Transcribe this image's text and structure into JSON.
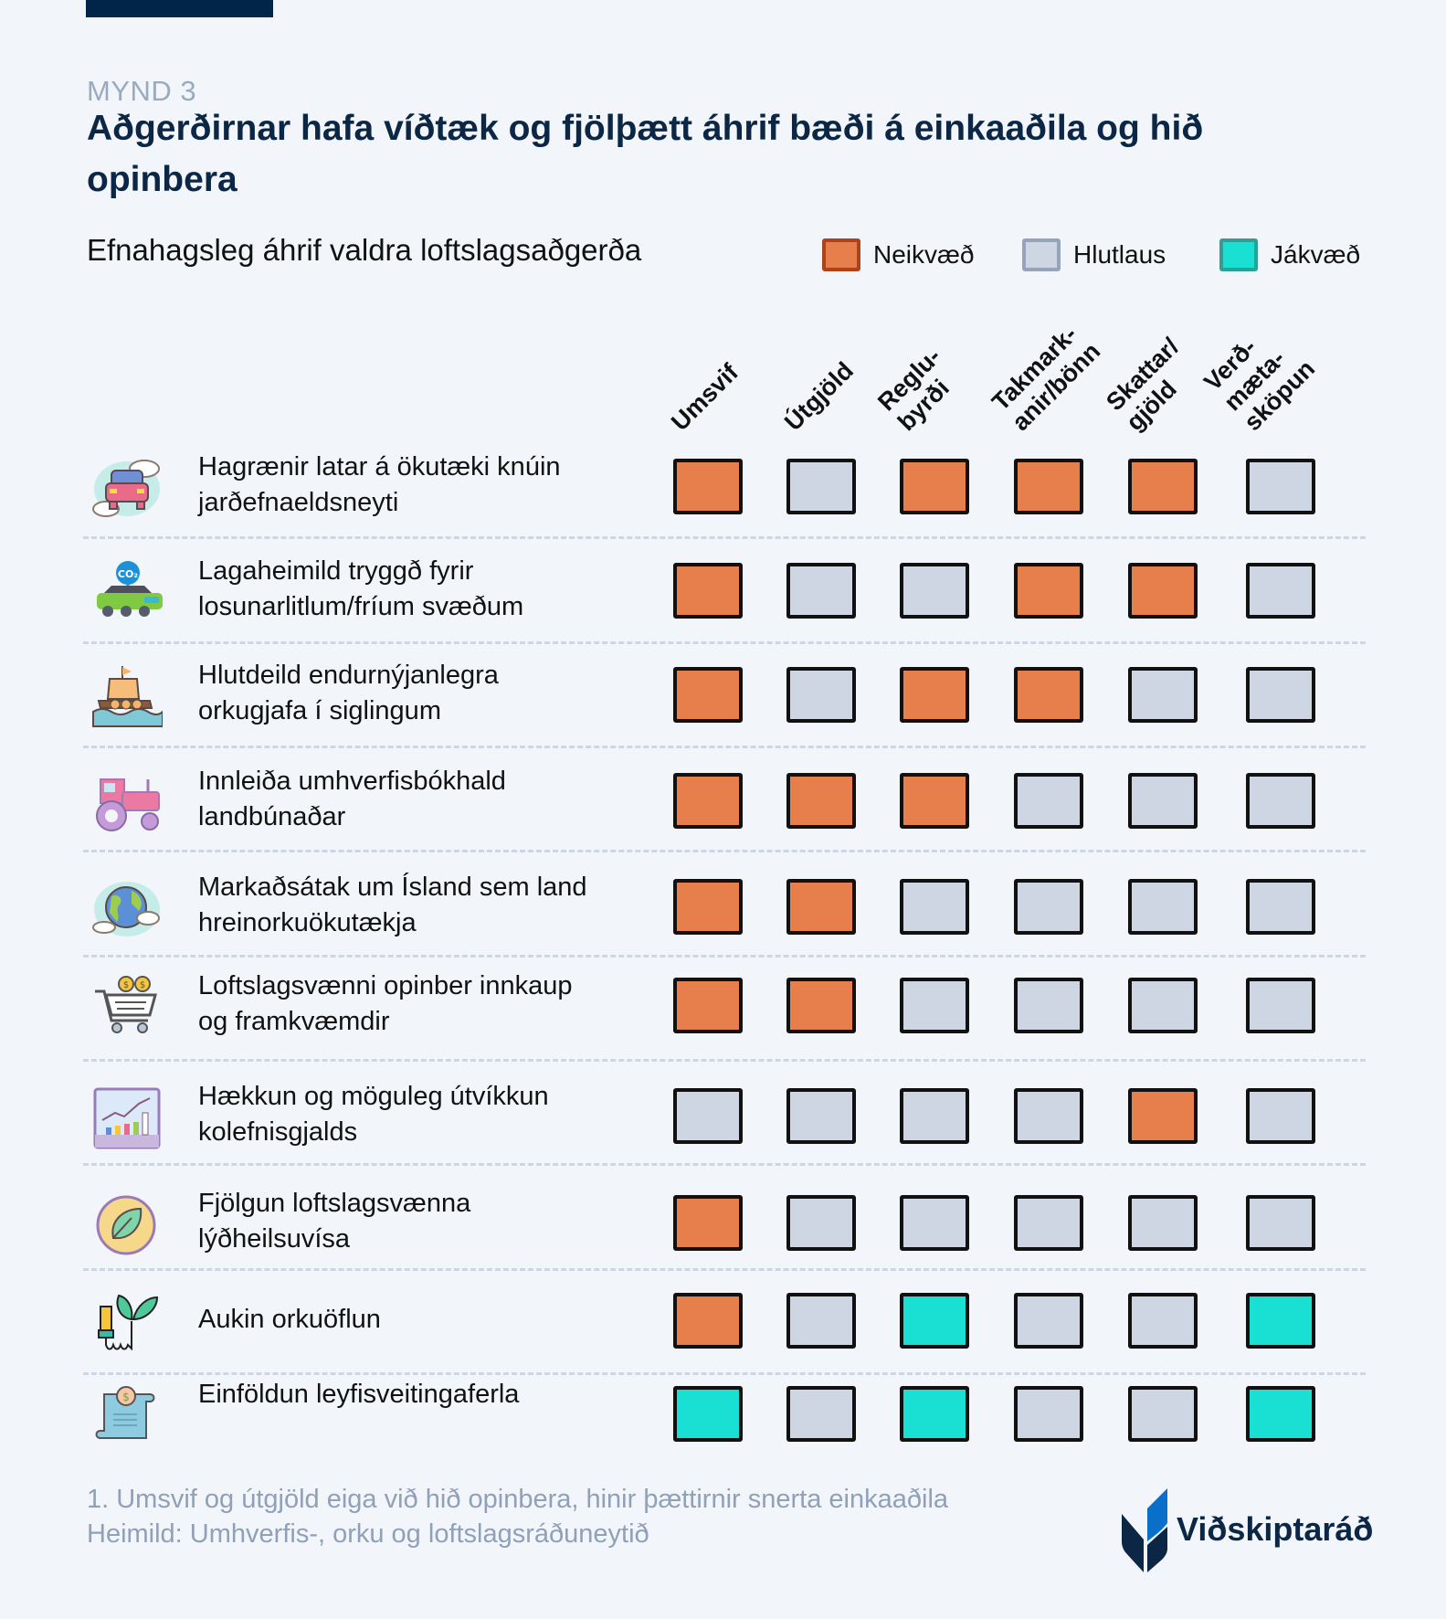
{
  "figure_label": "MYND 3",
  "title": "Aðgerðirnar hafa víðtæk og fjölþætt áhrif bæði á einkaaðila og hið opinbera",
  "subtitle": "Efnahagsleg áhrif valdra loftslagsaðgerða",
  "legend": [
    {
      "key": "neg",
      "label": "Neikvæð",
      "fill": "#e77f4d",
      "border": "#ad431b"
    },
    {
      "key": "neu",
      "label": "Hlutlaus",
      "fill": "#cdd6e2",
      "border": "#95a4ba"
    },
    {
      "key": "pos",
      "label": "Jákvæð",
      "fill": "#19e0d3",
      "border": "#2e9f97"
    }
  ],
  "chart_data": {
    "type": "heatmap",
    "title": "Efnahagsleg áhrif valdra loftslagsaðgerða",
    "columns": [
      "Umsvif",
      "Útgjöld",
      "Reglu-\nbyrði",
      "Takmark-\nanir/bönn",
      "Skattar/\ngjöld",
      "Verð-\nmæta-\nsköpun"
    ],
    "rows": [
      {
        "label": "Hagrænir latar á ökutæki knúin jarðefnaeldsneyti",
        "icon": "car-clouds-icon",
        "values": [
          "neg",
          "neu",
          "neg",
          "neg",
          "neg",
          "neu"
        ]
      },
      {
        "label": "Lagaheimild tryggð fyrir losunarlitlum/fríum svæðum",
        "icon": "co2-car-icon",
        "values": [
          "neg",
          "neu",
          "neu",
          "neg",
          "neg",
          "neu"
        ]
      },
      {
        "label": "Hlutdeild endurnýjanlegra orkugjafa í siglingum",
        "icon": "viking-ship-icon",
        "values": [
          "neg",
          "neu",
          "neg",
          "neg",
          "neu",
          "neu"
        ]
      },
      {
        "label": "Innleiða umhverfisbókhald landbúnaðar",
        "icon": "tractor-icon",
        "values": [
          "neg",
          "neg",
          "neg",
          "neu",
          "neu",
          "neu"
        ]
      },
      {
        "label": "Markaðsátak um Ísland sem land hreinorkuökutækja",
        "icon": "globe-icon",
        "values": [
          "neg",
          "neg",
          "neu",
          "neu",
          "neu",
          "neu"
        ]
      },
      {
        "label": "Loftslagsvænni opinber innkaup og framkvæmdir",
        "icon": "shopping-cart-icon",
        "values": [
          "neg",
          "neg",
          "neu",
          "neu",
          "neu",
          "neu"
        ]
      },
      {
        "label": "Hækkun og möguleg útvíkkun kolefnisgjalds",
        "icon": "growth-chart-icon",
        "values": [
          "neu",
          "neu",
          "neu",
          "neu",
          "neg",
          "neu"
        ]
      },
      {
        "label": "Fjölgun loftslagsvænna lýðheilsuvísa",
        "icon": "leaf-badge-icon",
        "values": [
          "neg",
          "neu",
          "neu",
          "neu",
          "neu",
          "neu"
        ]
      },
      {
        "label": "Aukin orkuöflun",
        "icon": "bulb-plant-icon",
        "values": [
          "neg",
          "neu",
          "pos",
          "neu",
          "neu",
          "pos"
        ]
      },
      {
        "label": "Einföldun leyfisveitingaferla",
        "icon": "document-dollar-icon",
        "values": [
          "pos",
          "neu",
          "pos",
          "neu",
          "neu",
          "pos"
        ]
      }
    ],
    "legend": [
      "Neikvæð",
      "Hlutlaus",
      "Jákvæð"
    ],
    "legend_position": "top-right"
  },
  "footnote": [
    "1. Umsvif og útgjöld eiga við hið opinbera, hinir þættirnir snerta einkaaðila",
    "Heimild: Umhverfis-, orku og loftslagsráðuneytið"
  ],
  "logo_text": "Viðskiptaráð"
}
